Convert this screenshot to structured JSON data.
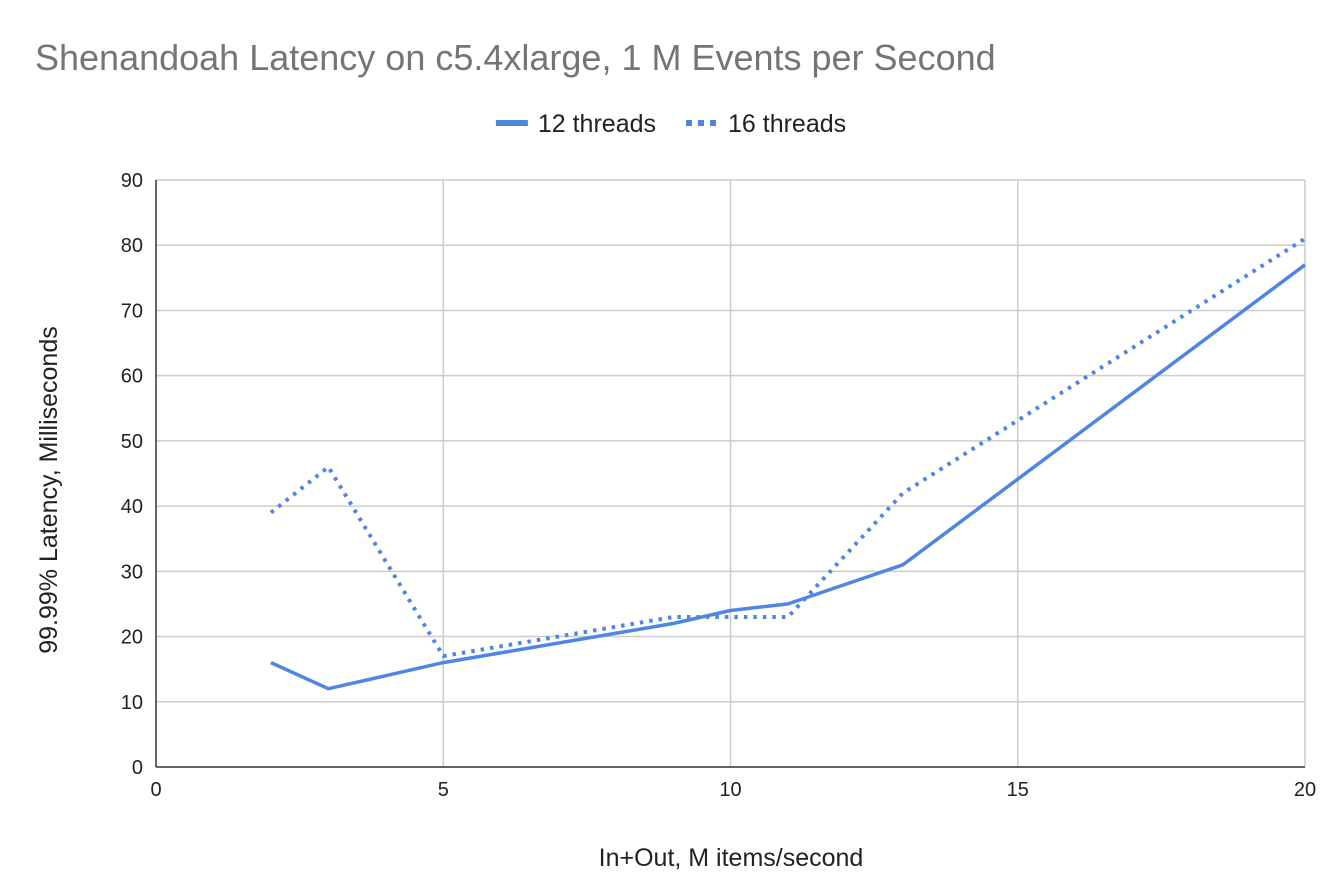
{
  "chart_data": {
    "type": "line",
    "title": "Shenandoah Latency on c5.4xlarge, 1 M Events per Second",
    "xlabel": "In+Out, M items/second",
    "ylabel": "99.99% Latency, Milliseconds",
    "xlim": [
      0,
      20
    ],
    "ylim": [
      0,
      90
    ],
    "xticks": [
      0,
      5,
      10,
      15,
      20
    ],
    "yticks": [
      0,
      10,
      20,
      30,
      40,
      50,
      60,
      70,
      80,
      90
    ],
    "grid": true,
    "legend_position": "top",
    "series": [
      {
        "name": "12 threads",
        "style": "solid",
        "color": "#4f86e3",
        "points": [
          [
            2,
            16
          ],
          [
            3,
            12
          ],
          [
            5,
            16
          ],
          [
            9,
            22
          ],
          [
            10,
            24
          ],
          [
            11,
            25
          ],
          [
            13,
            31
          ],
          [
            20,
            77
          ]
        ]
      },
      {
        "name": "16 threads",
        "style": "dotted",
        "color": "#4f86e3",
        "points": [
          [
            2,
            39
          ],
          [
            3,
            46
          ],
          [
            5,
            17
          ],
          [
            9,
            23
          ],
          [
            11,
            23
          ],
          [
            13,
            42
          ],
          [
            20,
            81
          ]
        ]
      }
    ]
  }
}
